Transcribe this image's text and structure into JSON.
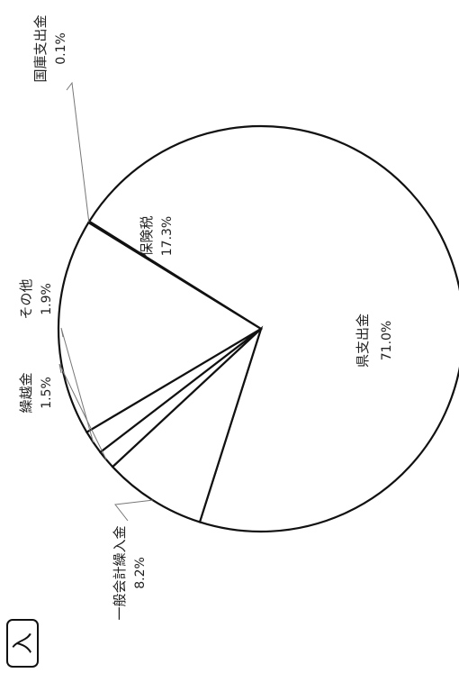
{
  "chart_data": {
    "type": "pie",
    "section_mark": "入",
    "slices": [
      {
        "label": "県支出金",
        "value": 71.0,
        "pct_label": "71.0%"
      },
      {
        "label": "一般会計繰入金",
        "value": 8.2,
        "pct_label": "8.2%"
      },
      {
        "label": "繰越金",
        "value": 1.5,
        "pct_label": "1.5%"
      },
      {
        "label": "その他",
        "value": 1.9,
        "pct_label": "1.9%"
      },
      {
        "label": "保険税",
        "value": 17.3,
        "pct_label": "17.3%"
      },
      {
        "label": "国庫支出金",
        "value": 0.1,
        "pct_label": "0.1%"
      }
    ]
  }
}
